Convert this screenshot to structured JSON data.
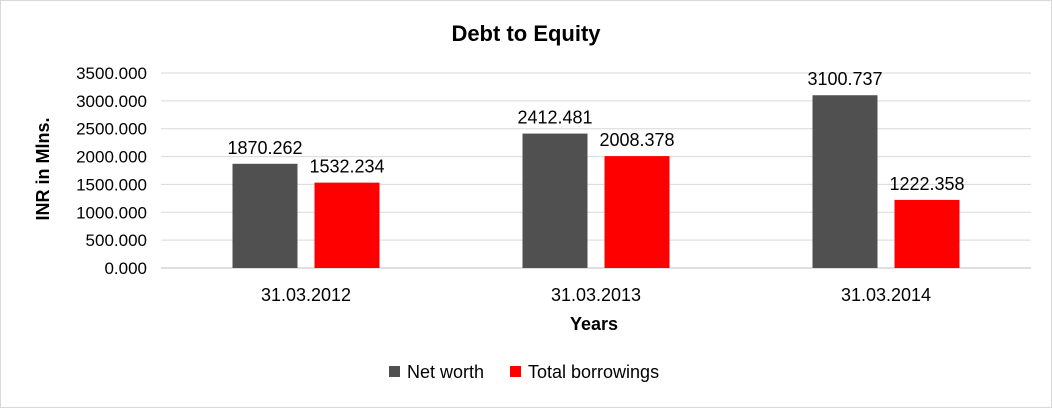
{
  "chart_data": {
    "type": "bar",
    "title": "Debt to Equity",
    "xlabel": "Years",
    "ylabel": "INR in Mlns.",
    "categories": [
      "31.03.2012",
      "31.03.2013",
      "31.03.2014"
    ],
    "series": [
      {
        "name": "Net worth",
        "values": [
          1870.262,
          2412.481,
          3100.737
        ],
        "color": "#505050"
      },
      {
        "name": "Total borrowings",
        "values": [
          1532.234,
          2008.378,
          1222.358
        ],
        "color": "#ff0000"
      }
    ],
    "ylim": [
      0,
      3500
    ],
    "yticks": [
      "0.000",
      "500.000",
      "1000.000",
      "1500.000",
      "2000.000",
      "2500.000",
      "3000.000",
      "3500.000"
    ],
    "grid": true,
    "legend": "bottom",
    "data_labels": [
      "1870.262",
      "1532.234",
      "2412.481",
      "2008.378",
      "3100.737",
      "1222.358"
    ]
  }
}
